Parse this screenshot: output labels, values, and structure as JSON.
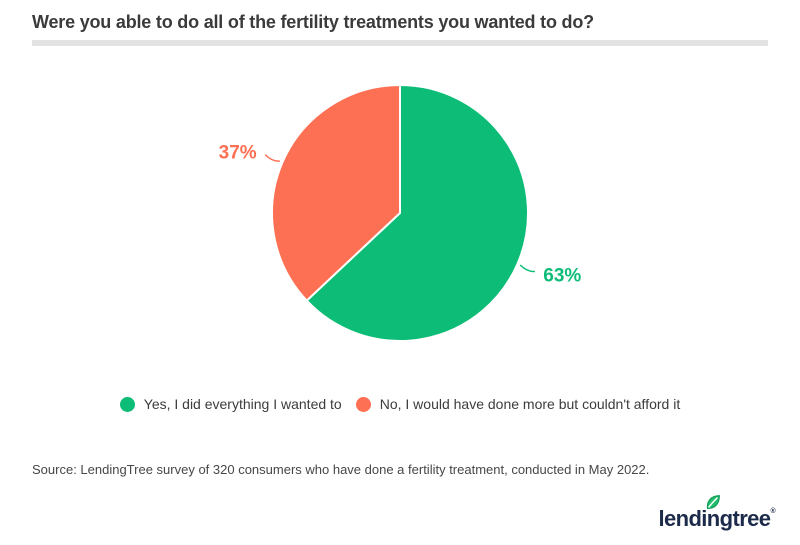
{
  "title": "Were you able to do all of the fertility treatments you wanted to do?",
  "chart_data": {
    "type": "pie",
    "title": "Were you able to do all of the fertility treatments you wanted to do?",
    "start_angle": "top",
    "direction": "clockwise",
    "legend_position": "bottom",
    "slices": [
      {
        "label": "Yes, I did everything I wanted to",
        "value": 63,
        "display": "63%",
        "color": "#0dbd77"
      },
      {
        "label": "No, I would have done more but couldn't afford it",
        "value": 37,
        "display": "37%",
        "color": "#fd7053"
      }
    ]
  },
  "source": {
    "text": "Source: LendingTree survey of 320 consumers who have done a fertility treatment, conducted in May 2022."
  },
  "logo": {
    "text": "lendingtree",
    "reg": "®"
  }
}
